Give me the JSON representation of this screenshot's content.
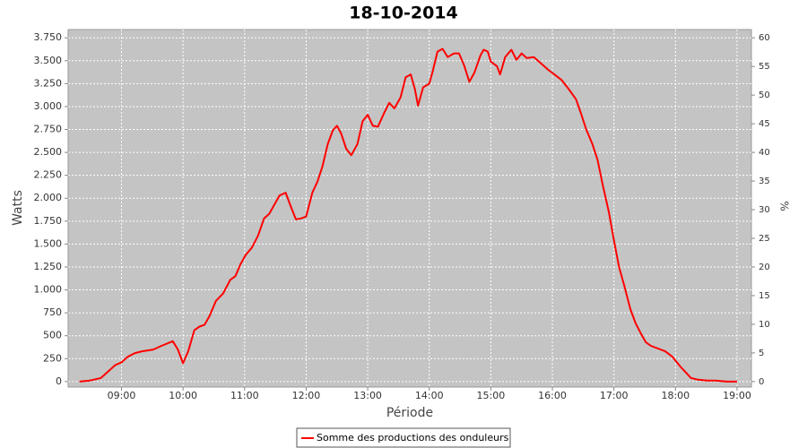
{
  "chart_data": {
    "type": "line",
    "title": "18-10-2014",
    "x_label": "Période",
    "y_label": "Watts",
    "y2_label": "%",
    "x": [
      "08:19",
      "08:29",
      "08:40",
      "08:47",
      "08:54",
      "09:00",
      "09:06",
      "09:13",
      "09:20",
      "09:31",
      "09:39",
      "09:50",
      "09:55",
      "10:00",
      "10:05",
      "10:11",
      "10:16",
      "10:21",
      "10:26",
      "10:32",
      "10:39",
      "10:46",
      "10:51",
      "10:56",
      "11:01",
      "11:07",
      "11:13",
      "11:19",
      "11:24",
      "11:29",
      "11:34",
      "11:40",
      "11:45",
      "11:50",
      "11:55",
      "12:00",
      "12:06",
      "12:11",
      "12:16",
      "12:21",
      "12:26",
      "12:30",
      "12:34",
      "12:39",
      "12:44",
      "12:50",
      "12:55",
      "13:00",
      "13:05",
      "13:10",
      "13:16",
      "13:21",
      "13:26",
      "13:32",
      "13:37",
      "13:42",
      "13:46",
      "13:49",
      "13:54",
      "14:00",
      "14:03",
      "14:08",
      "14:13",
      "14:18",
      "14:24",
      "14:29",
      "14:34",
      "14:39",
      "14:44",
      "14:50",
      "14:53",
      "14:57",
      "15:00",
      "15:06",
      "15:09",
      "15:14",
      "15:20",
      "15:25",
      "15:30",
      "15:35",
      "15:42",
      "15:49",
      "15:56",
      "16:02",
      "16:09",
      "16:16",
      "16:23",
      "16:28",
      "16:33",
      "16:39",
      "16:44",
      "16:49",
      "16:55",
      "17:00",
      "17:05",
      "17:10",
      "17:16",
      "17:21",
      "17:26",
      "17:31",
      "17:36",
      "17:43",
      "17:50",
      "17:57",
      "18:05",
      "18:10",
      "18:15",
      "18:22",
      "18:31",
      "18:39",
      "18:50",
      "19:00"
    ],
    "series": [
      {
        "name": "Somme des productions des onduleurs",
        "color": "#ff0000",
        "values": [
          0,
          10,
          40,
          110,
          180,
          210,
          270,
          310,
          330,
          350,
          390,
          440,
          350,
          200,
          330,
          560,
          600,
          620,
          720,
          880,
          960,
          1110,
          1150,
          1280,
          1380,
          1460,
          1590,
          1780,
          1830,
          1930,
          2030,
          2060,
          1910,
          1770,
          1780,
          1800,
          2060,
          2180,
          2350,
          2590,
          2740,
          2790,
          2710,
          2540,
          2470,
          2590,
          2840,
          2910,
          2790,
          2780,
          2930,
          3040,
          2980,
          3100,
          3320,
          3350,
          3190,
          3010,
          3210,
          3250,
          3370,
          3600,
          3630,
          3540,
          3580,
          3580,
          3450,
          3270,
          3370,
          3560,
          3620,
          3600,
          3490,
          3440,
          3350,
          3540,
          3620,
          3510,
          3580,
          3530,
          3540,
          3470,
          3400,
          3350,
          3290,
          3190,
          3080,
          2920,
          2750,
          2590,
          2420,
          2150,
          1850,
          1540,
          1250,
          1050,
          790,
          640,
          530,
          430,
          390,
          360,
          330,
          270,
          160,
          100,
          40,
          20,
          10,
          10,
          0,
          0
        ]
      }
    ],
    "xlim": [
      "08:08",
      "19:14"
    ],
    "xticks": [
      "09:00",
      "10:00",
      "11:00",
      "12:00",
      "13:00",
      "14:00",
      "15:00",
      "16:00",
      "17:00",
      "18:00",
      "19:00"
    ],
    "ylim": [
      -60,
      3840
    ],
    "yticks": [
      0,
      250,
      500,
      750,
      {
        "value": 1000,
        "label": "1.000"
      },
      {
        "value": 1250,
        "label": "1.250"
      },
      {
        "value": 1500,
        "label": "1.500"
      },
      {
        "value": 1750,
        "label": "1.750"
      },
      {
        "value": 2000,
        "label": "2.000"
      },
      {
        "value": 2250,
        "label": "2.250"
      },
      {
        "value": 2500,
        "label": "2.500"
      },
      {
        "value": 2750,
        "label": "2.750"
      },
      {
        "value": 3000,
        "label": "3.000"
      },
      {
        "value": 3250,
        "label": "3.250"
      },
      {
        "value": 3500,
        "label": "3.500"
      },
      {
        "value": 3750,
        "label": "3.750"
      }
    ],
    "y2lim": [
      -0.96,
      61.44
    ],
    "y2ticks": [
      0,
      5,
      10,
      15,
      20,
      25,
      30,
      35,
      40,
      45,
      50,
      55,
      60
    ],
    "grid": true,
    "legend": "bottom"
  }
}
